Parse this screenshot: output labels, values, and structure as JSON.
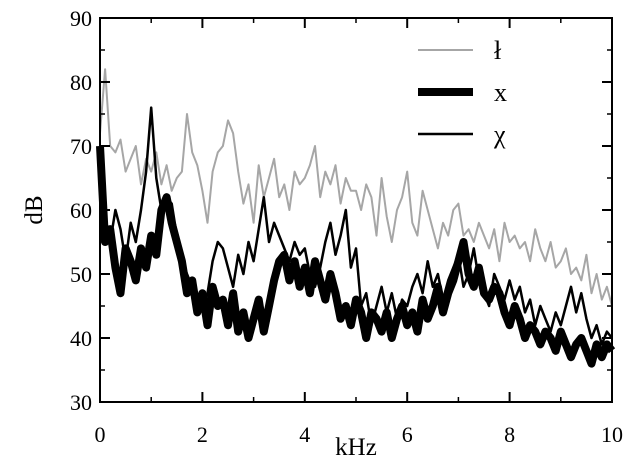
{
  "chart_data": {
    "type": "line",
    "xlabel": "kHz",
    "ylabel": "dB",
    "xlim": [
      0,
      10
    ],
    "ylim": [
      30,
      90
    ],
    "xticks": [
      0,
      2,
      4,
      6,
      8,
      10
    ],
    "yticks": [
      30,
      40,
      50,
      60,
      70,
      80,
      90
    ],
    "xtick_labels": [
      "0",
      "2",
      "4",
      "6",
      "8",
      "10"
    ],
    "ytick_labels": [
      "30",
      "40",
      "50",
      "60",
      "70",
      "80",
      "90"
    ],
    "grid": false,
    "legend_position": "top-right",
    "series": [
      {
        "name": "ł",
        "color": "#a6a6a6",
        "style": "thin",
        "x": [
          0,
          0.1,
          0.2,
          0.3,
          0.4,
          0.5,
          0.6,
          0.7,
          0.8,
          0.9,
          1.0,
          1.1,
          1.2,
          1.3,
          1.4,
          1.5,
          1.6,
          1.7,
          1.8,
          1.9,
          2.0,
          2.1,
          2.2,
          2.3,
          2.4,
          2.5,
          2.6,
          2.7,
          2.8,
          2.9,
          3.0,
          3.1,
          3.2,
          3.3,
          3.4,
          3.5,
          3.6,
          3.7,
          3.8,
          3.9,
          4.0,
          4.1,
          4.2,
          4.3,
          4.4,
          4.5,
          4.6,
          4.7,
          4.8,
          4.9,
          5.0,
          5.1,
          5.2,
          5.3,
          5.4,
          5.5,
          5.6,
          5.7,
          5.8,
          5.9,
          6.0,
          6.1,
          6.2,
          6.3,
          6.4,
          6.5,
          6.6,
          6.7,
          6.8,
          6.9,
          7.0,
          7.1,
          7.2,
          7.3,
          7.4,
          7.5,
          7.6,
          7.7,
          7.8,
          7.9,
          8.0,
          8.1,
          8.2,
          8.3,
          8.4,
          8.5,
          8.6,
          8.7,
          8.8,
          8.9,
          9.0,
          9.1,
          9.2,
          9.3,
          9.4,
          9.5,
          9.6,
          9.7,
          9.8,
          9.9,
          10.0
        ],
        "y": [
          72,
          82,
          70,
          69,
          71,
          66,
          68,
          70,
          64,
          68,
          66,
          69,
          64,
          67,
          63,
          65,
          66,
          75,
          69,
          67,
          63,
          58,
          66,
          69,
          70,
          74,
          72,
          66,
          61,
          64,
          58,
          67,
          62,
          65,
          68,
          62,
          64,
          60,
          66,
          64,
          65,
          67,
          70,
          62,
          66,
          64,
          67,
          61,
          65,
          63,
          63,
          60,
          64,
          62,
          56,
          65,
          59,
          55,
          60,
          62,
          66,
          58,
          56,
          63,
          60,
          57,
          54,
          58,
          56,
          60,
          61,
          56,
          57,
          55,
          58,
          56,
          54,
          57,
          52,
          58,
          55,
          56,
          54,
          55,
          52,
          57,
          54,
          52,
          55,
          51,
          52,
          54,
          50,
          51,
          49,
          53,
          47,
          50,
          46,
          48,
          45
        ]
      },
      {
        "name": "x",
        "color": "#000000",
        "style": "thick",
        "x": [
          0,
          0.1,
          0.2,
          0.3,
          0.4,
          0.5,
          0.6,
          0.7,
          0.8,
          0.9,
          1.0,
          1.1,
          1.2,
          1.3,
          1.4,
          1.5,
          1.6,
          1.7,
          1.8,
          1.9,
          2.0,
          2.1,
          2.2,
          2.3,
          2.4,
          2.5,
          2.6,
          2.7,
          2.8,
          2.9,
          3.0,
          3.1,
          3.2,
          3.3,
          3.4,
          3.5,
          3.6,
          3.7,
          3.8,
          3.9,
          4.0,
          4.1,
          4.2,
          4.3,
          4.4,
          4.5,
          4.6,
          4.7,
          4.8,
          4.9,
          5.0,
          5.1,
          5.2,
          5.3,
          5.4,
          5.5,
          5.6,
          5.7,
          5.8,
          5.9,
          6.0,
          6.1,
          6.2,
          6.3,
          6.4,
          6.5,
          6.6,
          6.7,
          6.8,
          6.9,
          7.0,
          7.1,
          7.2,
          7.3,
          7.4,
          7.5,
          7.6,
          7.7,
          7.8,
          7.9,
          8.0,
          8.1,
          8.2,
          8.3,
          8.4,
          8.5,
          8.6,
          8.7,
          8.8,
          8.9,
          9.0,
          9.1,
          9.2,
          9.3,
          9.4,
          9.5,
          9.6,
          9.7,
          9.8,
          9.9,
          10.0
        ],
        "y": [
          70,
          55,
          57,
          51,
          47,
          54,
          52,
          49,
          54,
          51,
          56,
          53,
          60,
          62,
          58,
          55,
          52,
          47,
          49,
          44,
          47,
          42,
          48,
          45,
          46,
          42,
          47,
          41,
          44,
          40,
          43,
          46,
          41,
          45,
          49,
          52,
          53,
          49,
          52,
          48,
          51,
          47,
          52,
          49,
          46,
          50,
          47,
          43,
          45,
          42,
          46,
          44,
          40,
          44,
          43,
          41,
          44,
          40,
          43,
          45,
          42,
          44,
          41,
          46,
          43,
          45,
          48,
          44,
          47,
          49,
          52,
          55,
          50,
          48,
          51,
          47,
          46,
          48,
          47,
          44,
          42,
          45,
          43,
          40,
          42,
          41,
          39,
          41,
          40,
          38,
          41,
          39,
          37,
          39,
          40,
          38,
          36,
          39,
          37,
          39,
          38
        ]
      },
      {
        "name": "χ",
        "color": "#000000",
        "style": "medium",
        "x": [
          0,
          0.1,
          0.2,
          0.3,
          0.4,
          0.5,
          0.6,
          0.7,
          0.8,
          0.9,
          1.0,
          1.1,
          1.2,
          1.3,
          1.4,
          1.5,
          1.6,
          1.7,
          1.8,
          1.9,
          2.0,
          2.1,
          2.2,
          2.3,
          2.4,
          2.5,
          2.6,
          2.7,
          2.8,
          2.9,
          3.0,
          3.1,
          3.2,
          3.3,
          3.4,
          3.5,
          3.6,
          3.7,
          3.8,
          3.9,
          4.0,
          4.1,
          4.2,
          4.3,
          4.4,
          4.5,
          4.6,
          4.7,
          4.8,
          4.9,
          5.0,
          5.1,
          5.2,
          5.3,
          5.4,
          5.5,
          5.6,
          5.7,
          5.8,
          5.9,
          6.0,
          6.1,
          6.2,
          6.3,
          6.4,
          6.5,
          6.6,
          6.7,
          6.8,
          6.9,
          7.0,
          7.1,
          7.2,
          7.3,
          7.4,
          7.5,
          7.6,
          7.7,
          7.8,
          7.9,
          8.0,
          8.1,
          8.2,
          8.3,
          8.4,
          8.5,
          8.6,
          8.7,
          8.8,
          8.9,
          9.0,
          9.1,
          9.2,
          9.3,
          9.4,
          9.5,
          9.6,
          9.7,
          9.8,
          9.9,
          10.0
        ],
        "y": [
          65,
          59,
          55,
          60,
          57,
          52,
          58,
          55,
          60,
          66,
          76,
          65,
          60,
          62,
          61,
          56,
          52,
          50,
          48,
          46,
          45,
          47,
          52,
          55,
          54,
          51,
          48,
          53,
          50,
          55,
          52,
          57,
          62,
          55,
          58,
          56,
          54,
          52,
          55,
          53,
          54,
          50,
          48,
          51,
          55,
          58,
          53,
          56,
          60,
          51,
          54,
          45,
          47,
          42,
          45,
          48,
          44,
          47,
          43,
          46,
          45,
          48,
          50,
          47,
          52,
          48,
          50,
          46,
          49,
          51,
          53,
          48,
          50,
          54,
          49,
          47,
          45,
          50,
          48,
          46,
          49,
          46,
          48,
          44,
          46,
          42,
          45,
          43,
          41,
          44,
          42,
          45,
          48,
          44,
          47,
          43,
          40,
          42,
          39,
          41,
          40
        ]
      }
    ]
  }
}
